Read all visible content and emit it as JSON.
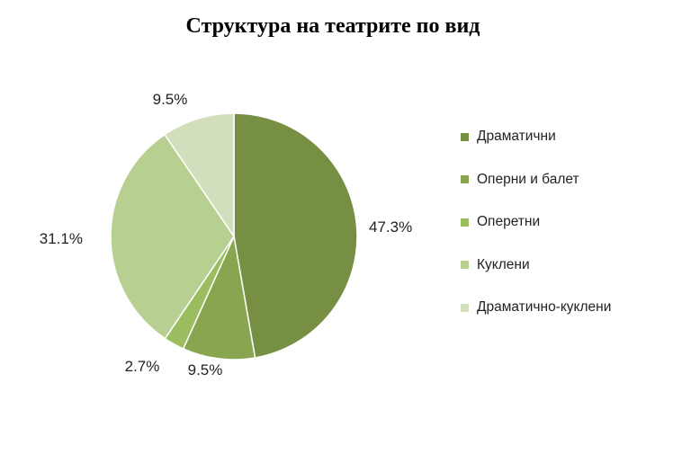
{
  "chart_data": {
    "type": "pie",
    "title": "Структура на театрите по вид",
    "categories": [
      "Драматични",
      "Оперни и балет",
      "Оперетни",
      "Куклени",
      "Драматично-куклени"
    ],
    "values": [
      47.3,
      9.5,
      2.7,
      31.1,
      9.5
    ],
    "labels": [
      "47.3%",
      "9.5%",
      "2.7%",
      "31.1%",
      "9.5%"
    ],
    "colors": [
      "#768f42",
      "#8aa54f",
      "#9cbd5f",
      "#b8cf92",
      "#d2dfbd"
    ],
    "legend_position": "right"
  }
}
